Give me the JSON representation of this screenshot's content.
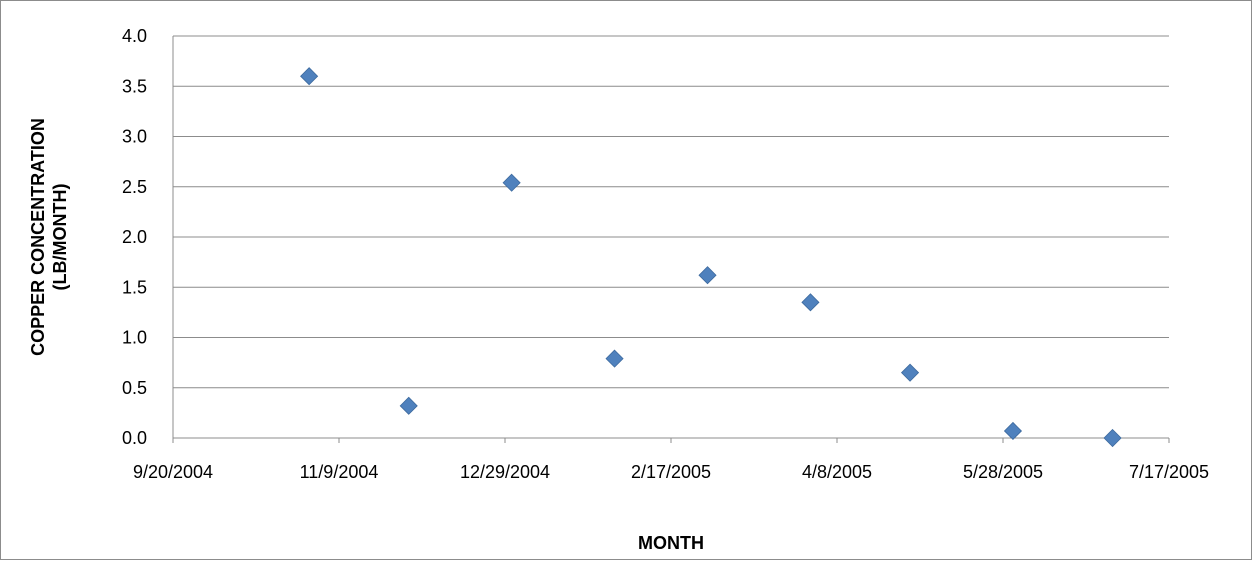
{
  "chart_data": {
    "type": "scatter",
    "title": "",
    "xlabel": "MONTH",
    "ylabel_lines": [
      "COPPER CONCENTRATION",
      "(LB/MONTH)"
    ],
    "x_axis": {
      "min": "9/20/2004",
      "max": "7/17/2005",
      "tick_labels": [
        "9/20/2004",
        "11/9/2004",
        "12/29/2004",
        "2/17/2005",
        "4/8/2005",
        "5/28/2005",
        "7/17/2005"
      ]
    },
    "y_axis": {
      "min": 0.0,
      "max": 4.0,
      "step": 0.5,
      "tick_labels": [
        "0.0",
        "0.5",
        "1.0",
        "1.5",
        "2.0",
        "2.5",
        "3.0",
        "3.5",
        "4.0"
      ]
    },
    "grid": "horizontal",
    "legend": "none",
    "marker": "diamond",
    "marker_color": "#4f81bd",
    "points": [
      {
        "x": "10/31/2004",
        "y": 3.6
      },
      {
        "x": "11/30/2004",
        "y": 0.32
      },
      {
        "x": "12/31/2004",
        "y": 2.54
      },
      {
        "x": "1/31/2005",
        "y": 0.79
      },
      {
        "x": "2/28/2005",
        "y": 1.62
      },
      {
        "x": "3/31/2005",
        "y": 1.35
      },
      {
        "x": "4/30/2005",
        "y": 0.65
      },
      {
        "x": "5/31/2005",
        "y": 0.07
      },
      {
        "x": "6/30/2005",
        "y": 0.0
      }
    ]
  }
}
